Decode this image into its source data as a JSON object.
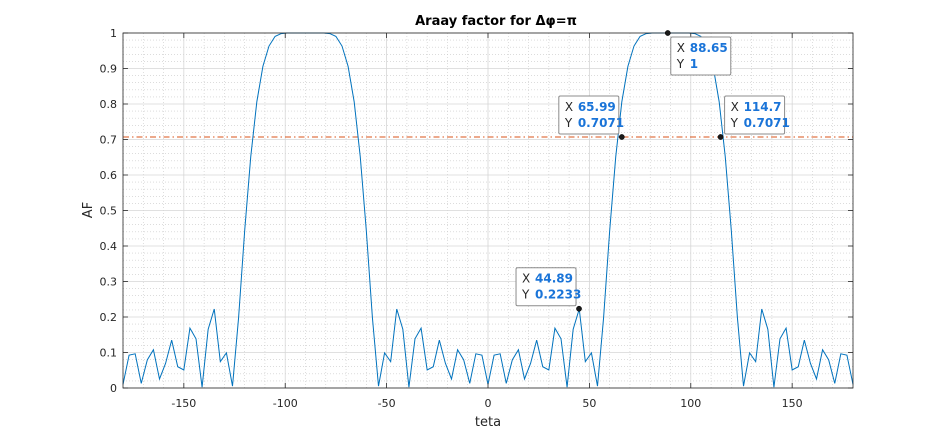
{
  "chart_data": {
    "type": "line",
    "title": "Araay factor for  Δφ=π",
    "xlabel": "teta",
    "ylabel": "AF",
    "xlim": [
      -180,
      180
    ],
    "ylim": [
      0,
      1
    ],
    "xticks": [
      -150,
      -100,
      -50,
      0,
      50,
      100,
      150
    ],
    "yticks": [
      0,
      0.1,
      0.2,
      0.3,
      0.4,
      0.5,
      0.6,
      0.7,
      0.8,
      0.9,
      1
    ],
    "grid": true,
    "minor_grid": true,
    "series": [
      {
        "color": "#0072bd",
        "x": [
          -180,
          -177,
          -174,
          -171,
          -168,
          -165,
          -162,
          -159,
          -156,
          -153,
          -150,
          -147,
          -144,
          -141,
          -138,
          -135,
          -132,
          -129,
          -126,
          -123,
          -120,
          -117,
          -114,
          -111,
          -108,
          -105,
          -102,
          -99,
          -96,
          -93,
          -90,
          -87,
          -84,
          -81,
          -78,
          -75,
          -72,
          -69,
          -66,
          -63,
          -60,
          -57,
          -54,
          -51,
          -48,
          -45,
          -42,
          -39,
          -36,
          -33,
          -30,
          -27,
          -24,
          -21,
          -18,
          -15,
          -12,
          -9,
          -6,
          -3,
          0,
          3,
          6,
          9,
          12,
          15,
          18,
          21,
          24,
          27,
          30,
          33,
          36,
          39,
          42,
          45,
          48,
          51,
          54,
          57,
          60,
          63,
          66,
          69,
          72,
          75,
          78,
          81,
          84,
          87,
          90,
          93,
          96,
          99,
          102,
          105,
          108,
          111,
          114,
          117,
          120,
          123,
          126,
          129,
          132,
          135,
          138,
          141,
          144,
          147,
          150,
          153,
          156,
          159,
          162,
          165,
          168,
          171,
          174,
          177,
          180
        ],
        "y": [
          0.0102,
          0.0924,
          0.0963,
          0.0131,
          0.0793,
          0.1077,
          0.0254,
          0.0695,
          0.1349,
          0.0599,
          0.0507,
          0.1685,
          0.1388,
          0.0024,
          0.1656,
          0.2225,
          0.0742,
          0.0989,
          0.0053,
          0.1978,
          0.4427,
          0.6517,
          0.8064,
          0.9063,
          0.9633,
          0.9905,
          0.9983,
          0.9999,
          1.0,
          1.0,
          1.0,
          1.0,
          1.0,
          0.9999,
          0.9983,
          0.9905,
          0.9633,
          0.9063,
          0.8064,
          0.6517,
          0.4427,
          0.1978,
          0.0053,
          0.0989,
          0.0742,
          0.2225,
          0.1656,
          0.0024,
          0.1388,
          0.1685,
          0.0507,
          0.0599,
          0.1349,
          0.0695,
          0.0254,
          0.1077,
          0.0793,
          0.0131,
          0.0963,
          0.0924,
          0.0102,
          0.0924,
          0.0963,
          0.0131,
          0.0793,
          0.1077,
          0.0254,
          0.0695,
          0.1349,
          0.0599,
          0.0507,
          0.1685,
          0.1388,
          0.0024,
          0.1656,
          0.2225,
          0.0742,
          0.0989,
          0.0053,
          0.1978,
          0.4427,
          0.6517,
          0.8064,
          0.9063,
          0.9633,
          0.9905,
          0.9983,
          0.9999,
          1.0,
          1.0,
          1.0,
          1.0,
          1.0,
          0.9999,
          0.9983,
          0.9905,
          0.9633,
          0.9063,
          0.8064,
          0.6517,
          0.4427,
          0.1978,
          0.0053,
          0.0989,
          0.0742,
          0.2225,
          0.1656,
          0.0024,
          0.1388,
          0.1685,
          0.0507,
          0.0599,
          0.1349,
          0.0695,
          0.0254,
          0.1077,
          0.0793,
          0.0131,
          0.0963,
          0.0924,
          0.0102
        ]
      }
    ],
    "reference_line": {
      "y": 0.7071,
      "color": "#d95319",
      "style": "dash-dot"
    },
    "datatips": [
      {
        "x_label": "X",
        "x_value": "88.65",
        "y_label": "Y",
        "y_value": "1",
        "x": 88.65,
        "y": 1.0
      },
      {
        "x_label": "X",
        "x_value": "65.99",
        "y_label": "Y",
        "y_value": "0.7071",
        "x": 65.99,
        "y": 0.7071
      },
      {
        "x_label": "X",
        "x_value": "114.7",
        "y_label": "Y",
        "y_value": "0.7071",
        "x": 114.7,
        "y": 0.7071
      },
      {
        "x_label": "X",
        "x_value": "44.89",
        "y_label": "Y",
        "y_value": "0.2233",
        "x": 44.89,
        "y": 0.2233
      }
    ]
  }
}
